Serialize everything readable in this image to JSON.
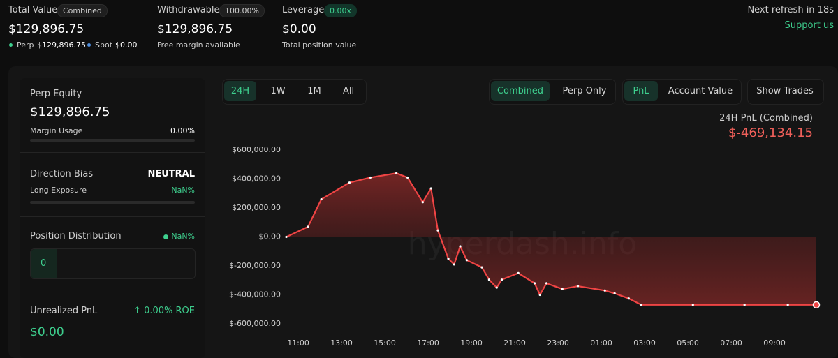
{
  "header": {
    "total_value": {
      "label": "Total Value",
      "badge": "Combined",
      "value": "$129,896.75",
      "breakdown": [
        {
          "name": "Perp",
          "value": "$129,896.75"
        },
        {
          "name": "Spot",
          "value": "$0.00"
        }
      ]
    },
    "withdrawable": {
      "label": "Withdrawable",
      "badge": "100.00%",
      "value": "$129,896.75",
      "note": "Free margin available"
    },
    "leverage": {
      "label": "Leverage",
      "badge": "0.00x",
      "value": "$0.00",
      "note": "Total position value"
    },
    "refresh": "Next refresh in 18s",
    "support": "Support us"
  },
  "sidebar": {
    "perp_equity": {
      "label": "Perp Equity",
      "value": "$129,896.75",
      "metric": "Margin Usage",
      "metric_value": "0.00%"
    },
    "direction_bias": {
      "label": "Direction Bias",
      "value": "NEUTRAL",
      "metric": "Long Exposure",
      "metric_value": "NaN%"
    },
    "position_distribution": {
      "label": "Position Distribution",
      "value": "NaN%",
      "count": "0"
    },
    "unrealized_pnl": {
      "label": "Unrealized PnL",
      "roe": "↑ 0.00% ROE",
      "value": "$0.00"
    }
  },
  "controls": {
    "ranges": [
      "24H",
      "1W",
      "1M",
      "All"
    ],
    "scope": [
      "Combined",
      "Perp Only"
    ],
    "metric": [
      "PnL",
      "Account Value"
    ],
    "trades": "Show Trades"
  },
  "chart_data": {
    "type": "line",
    "title": "24H PnL (Combined)",
    "subtitle": "$-469,134.15",
    "watermark": "hyperdash.info",
    "color": "#ef4444",
    "x": [
      "10:27",
      "11:27",
      "12:04",
      "13:22",
      "14:20",
      "15:32",
      "16:03",
      "16:45",
      "17:08",
      "17:27",
      "17:56",
      "18:12",
      "18:29",
      "18:47",
      "19:29",
      "19:49",
      "20:10",
      "20:24",
      "21:10",
      "21:55",
      "22:10",
      "22:28",
      "23:12",
      "23:55",
      "01:10",
      "01:37",
      "02:16",
      "02:51",
      "05:14",
      "07:37",
      "09:37",
      "10:56"
    ],
    "values": [
      0,
      70000,
      260000,
      375000,
      410000,
      440000,
      410000,
      240000,
      335000,
      45000,
      -150000,
      -190000,
      -65000,
      -160000,
      -210000,
      -295000,
      -350000,
      -295000,
      -250000,
      -320000,
      -400000,
      -320000,
      -360000,
      -340000,
      -370000,
      -390000,
      -425000,
      -469134.15,
      -469134.15,
      -469134.15,
      -469134.15,
      -469134.15
    ],
    "ylim": [
      -600000,
      600000
    ],
    "yticks": [
      {
        "value": -600000,
        "label": "$-600,000.00"
      },
      {
        "value": -400000,
        "label": "$-400,000.00"
      },
      {
        "value": -200000,
        "label": "$-200,000.00"
      },
      {
        "value": 0,
        "label": "$0.00"
      },
      {
        "value": 200000,
        "label": "$200,000.00"
      },
      {
        "value": 400000,
        "label": "$400,000.00"
      },
      {
        "value": 600000,
        "label": "$600,000.00"
      }
    ],
    "xticks": [
      "11:00",
      "13:00",
      "15:00",
      "17:00",
      "19:00",
      "21:00",
      "23:00",
      "01:00",
      "03:00",
      "05:00",
      "07:00",
      "09:00"
    ]
  }
}
